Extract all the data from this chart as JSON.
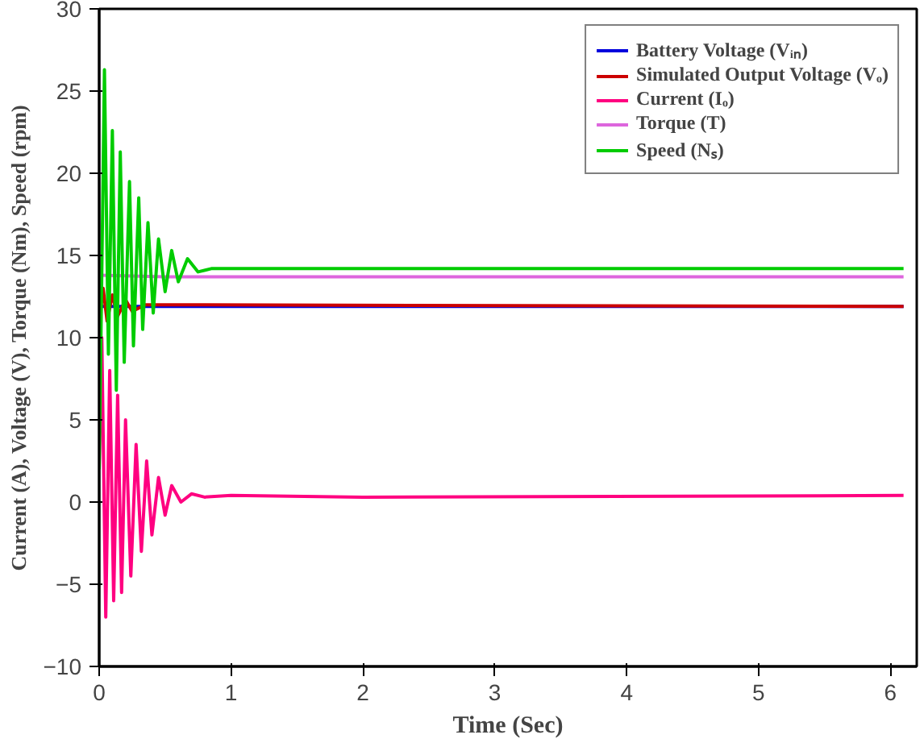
{
  "chart_data": {
    "type": "line",
    "xlabel": "Time (Sec)",
    "ylabel": "Current (A), Voltage (V), Torque (Nm), Speed (rpm)",
    "xlim": [
      0,
      6.2
    ],
    "ylim": [
      -10,
      30
    ],
    "xticks": [
      0,
      1,
      2,
      3,
      4,
      5,
      6
    ],
    "yticks": [
      -10,
      -5,
      0,
      5,
      10,
      15,
      20,
      25,
      30
    ],
    "grid": false,
    "legend": "top right",
    "marker": "none",
    "line_style": "solid",
    "series": [
      {
        "name": "Battery Voltage (Vᵢₙ)",
        "color": "#0000dd",
        "x": [
          0,
          6.1
        ],
        "values": [
          11.9,
          11.9
        ]
      },
      {
        "name": "Simulated Output Voltage (Vₒ)",
        "color": "#cc0000",
        "x": [
          0,
          0.03,
          0.06,
          0.1,
          0.14,
          0.2,
          0.25,
          0.35,
          6.1
        ],
        "values": [
          11,
          13,
          11,
          12.6,
          11.3,
          12.3,
          11.6,
          12,
          11.9
        ]
      },
      {
        "name": "Current (Iₒ)",
        "color": "#ff0080",
        "x": [
          0,
          0.02,
          0.05,
          0.08,
          0.11,
          0.14,
          0.17,
          0.2,
          0.24,
          0.28,
          0.32,
          0.36,
          0.4,
          0.45,
          0.5,
          0.55,
          0.62,
          0.7,
          0.8,
          1.0,
          2.0,
          6.1
        ],
        "values": [
          2,
          10,
          -7,
          8,
          -6,
          6.5,
          -5.5,
          5,
          -4.5,
          3.5,
          -3,
          2.5,
          -2,
          1.5,
          -0.8,
          1,
          0,
          0.5,
          0.3,
          0.4,
          0.3,
          0.4
        ]
      },
      {
        "name": "Torque (T)",
        "color": "#dd66dd",
        "x": [
          0,
          0.5,
          6.1
        ],
        "values": [
          13.8,
          13.7,
          13.7
        ]
      },
      {
        "name": "Speed (Nₛ)",
        "color": "#00cc00",
        "x": [
          0,
          0.02,
          0.04,
          0.07,
          0.1,
          0.13,
          0.16,
          0.19,
          0.23,
          0.26,
          0.3,
          0.33,
          0.37,
          0.41,
          0.45,
          0.5,
          0.55,
          0.6,
          0.67,
          0.75,
          0.85,
          6.1
        ],
        "values": [
          2,
          14,
          26.3,
          9,
          22.6,
          6.8,
          21.3,
          8.5,
          19.5,
          9.5,
          18.5,
          10.5,
          17,
          11.5,
          16,
          12.8,
          15.3,
          13.4,
          14.8,
          14.0,
          14.2,
          14.2
        ]
      }
    ]
  }
}
